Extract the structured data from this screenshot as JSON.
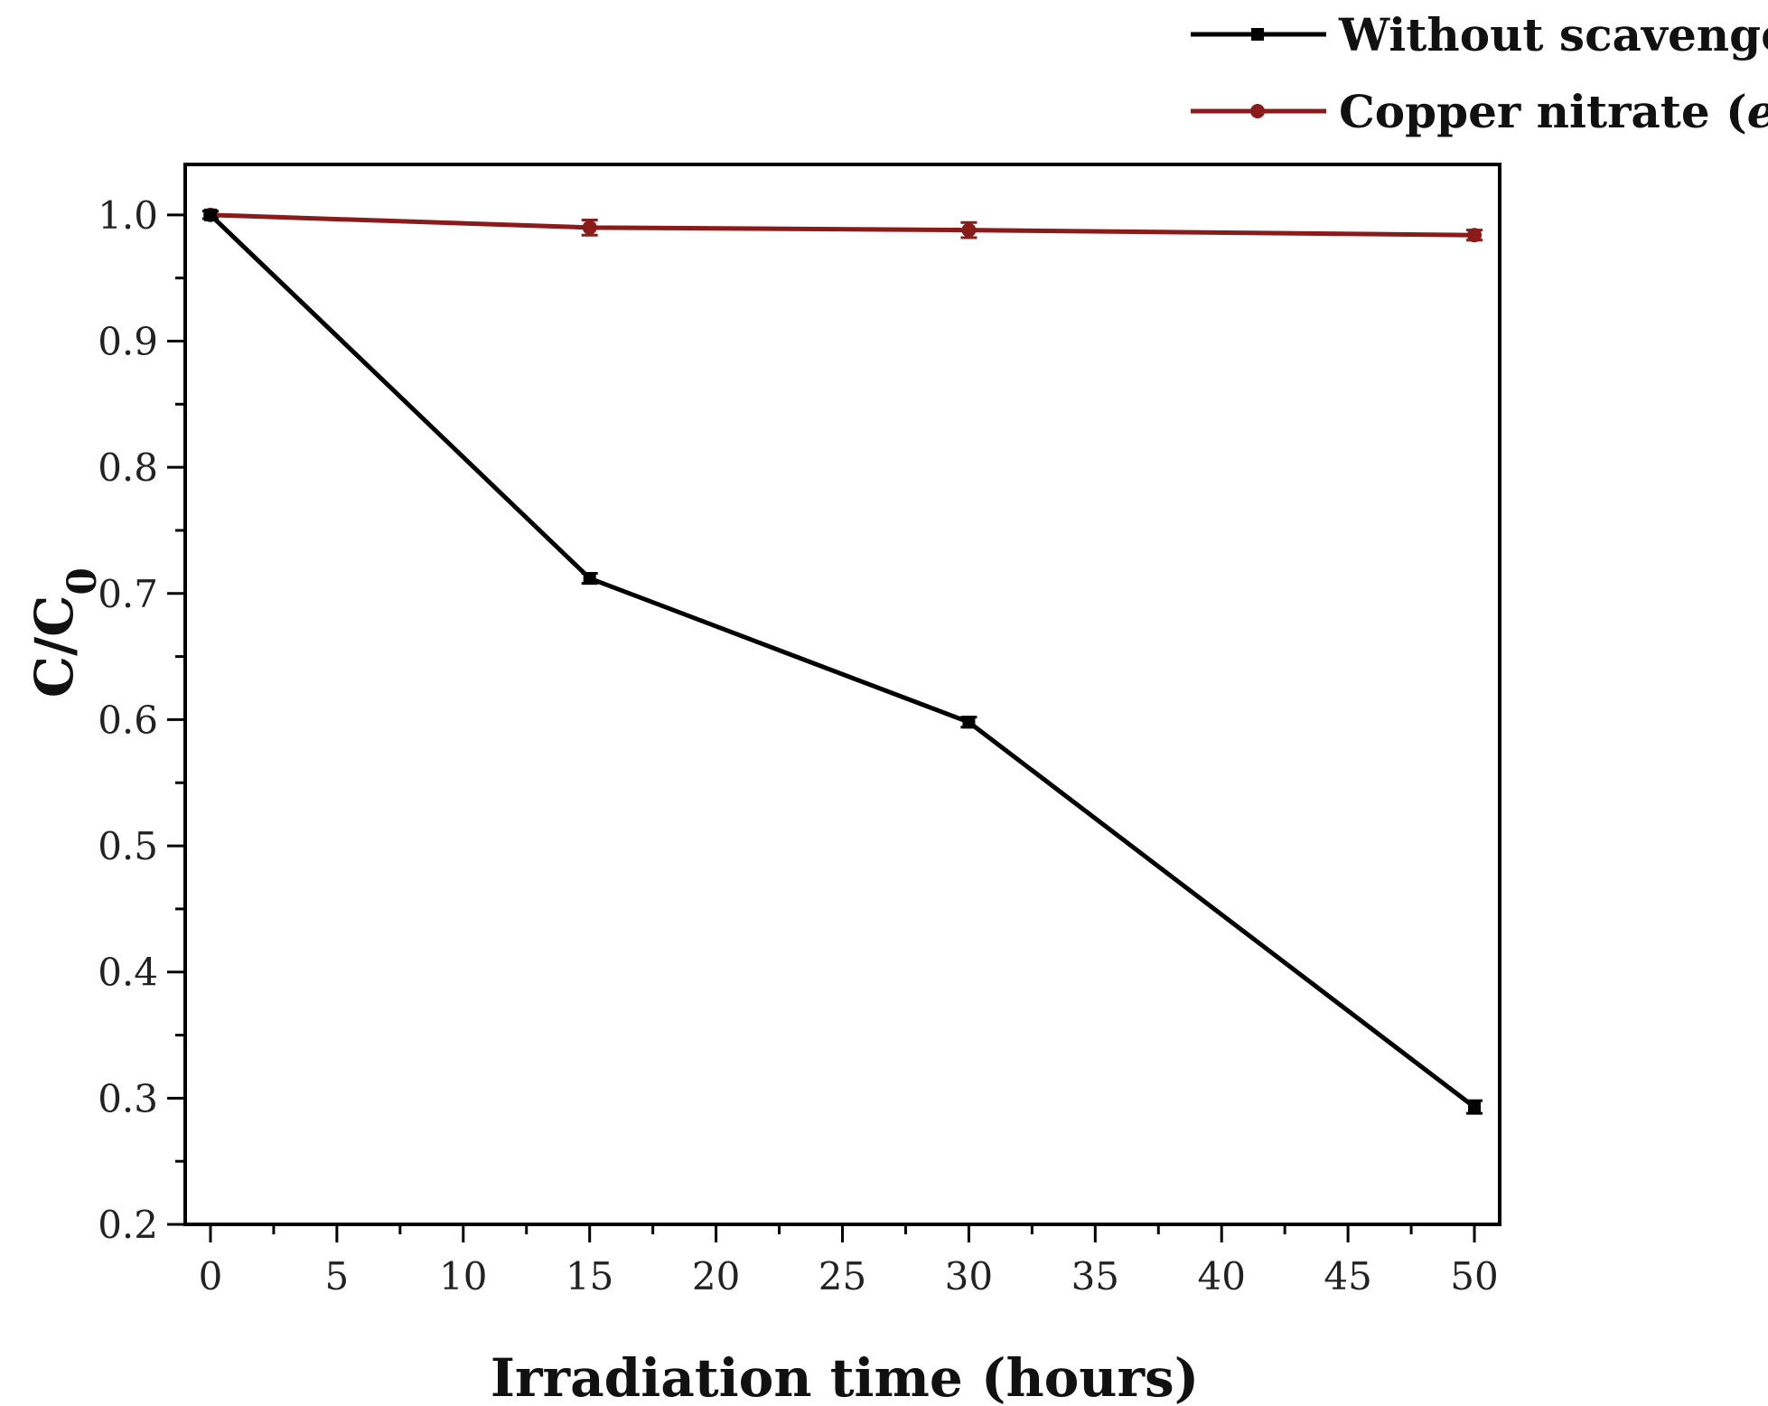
{
  "chart_data": {
    "type": "line",
    "title": "",
    "xlabel": "Irradiation time (hours)",
    "ylabel": {
      "main": "C/C",
      "subscript": "0"
    },
    "xlim": [
      -1,
      51
    ],
    "ylim": [
      0.2,
      1.04
    ],
    "x_ticks": [
      0,
      5,
      10,
      15,
      20,
      25,
      30,
      35,
      40,
      45,
      50
    ],
    "x_tick_labels": [
      "0",
      "5",
      "10",
      "15",
      "20",
      "25",
      "30",
      "35",
      "40",
      "45",
      "50"
    ],
    "y_ticks": [
      0.2,
      0.3,
      0.4,
      0.5,
      0.6,
      0.7,
      0.8,
      0.9,
      1.0
    ],
    "y_tick_labels": [
      "0.2",
      "0.3",
      "0.4",
      "0.5",
      "0.6",
      "0.7",
      "0.8",
      "0.9",
      "1.0"
    ],
    "grid": false,
    "legend_position": "top-right, outside plot",
    "series": [
      {
        "name": "Without scavenger",
        "legend": {
          "main": "Without scavenger",
          "italic": "",
          "superscript": "",
          "suffix": ""
        },
        "color": "#000000",
        "marker": "square",
        "x": [
          0,
          15,
          30,
          50
        ],
        "y": [
          1.0,
          0.712,
          0.598,
          0.293
        ],
        "error": [
          0.003,
          0.004,
          0.004,
          0.005
        ]
      },
      {
        "name": "Copper nitrate (e-)",
        "legend": {
          "main": "Copper nitrate (",
          "italic": "e",
          "superscript": "-",
          "suffix": ")"
        },
        "color": "#8b1a1a",
        "marker": "circle",
        "x": [
          0,
          15,
          30,
          50
        ],
        "y": [
          1.0,
          0.99,
          0.988,
          0.984
        ],
        "error": [
          0.003,
          0.006,
          0.006,
          0.004
        ]
      }
    ]
  }
}
